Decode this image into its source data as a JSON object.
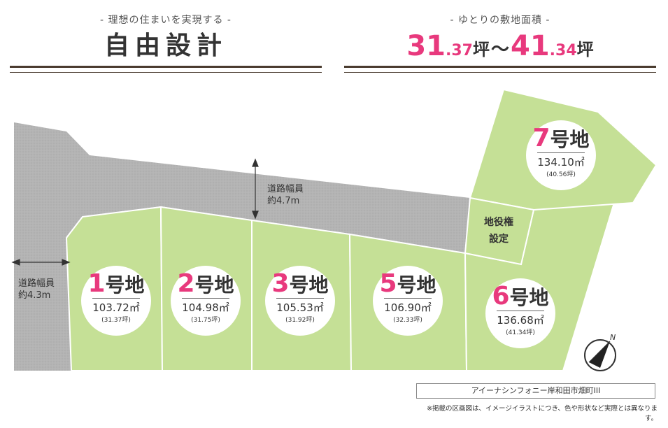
{
  "header_left": {
    "subtitle": "- 理想の住まいを実現する -",
    "title": "自由設計"
  },
  "header_right": {
    "subtitle": "- ゆとりの敷地面積 -",
    "min_int": "31",
    "min_dec": ".37",
    "unit1": "坪",
    "tilde": "～",
    "max_int": "41",
    "max_dec": ".34",
    "unit2": "坪"
  },
  "lots": [
    {
      "num": "1",
      "suffix": "号地",
      "area": "103.72㎡",
      "tsubo": "(31.37坪)"
    },
    {
      "num": "2",
      "suffix": "号地",
      "area": "104.98㎡",
      "tsubo": "(31.75坪)"
    },
    {
      "num": "3",
      "suffix": "号地",
      "area": "105.53㎡",
      "tsubo": "(31.92坪)"
    },
    {
      "num": "5",
      "suffix": "号地",
      "area": "106.90㎡",
      "tsubo": "(32.33坪)"
    },
    {
      "num": "6",
      "suffix": "号地",
      "area": "136.68㎡",
      "tsubo": "(41.34坪)"
    },
    {
      "num": "7",
      "suffix": "号地",
      "area": "134.10㎡",
      "tsubo": "(40.56坪)"
    }
  ],
  "roads": {
    "top": {
      "line1": "道路幅員",
      "line2": "約4.7m"
    },
    "left": {
      "line1": "道路幅員",
      "line2": "約4.3m"
    }
  },
  "easement": {
    "line1": "地役権",
    "line2": "設定"
  },
  "compass": {
    "label": "N"
  },
  "development_name": "アイーナシンフォニー岸和田市畑町III",
  "note": "※掲載の区画図は、イメージイラストにつき、色や形状など実際とは異なります。",
  "colors": {
    "lot": "#c5e096",
    "road": "#b4b4b4",
    "accent": "#e8397d",
    "rule": "#4a3b2f"
  }
}
